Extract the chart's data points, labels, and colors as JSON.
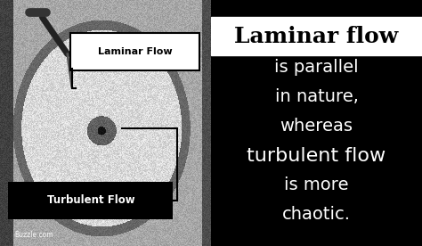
{
  "fig_width": 4.74,
  "fig_height": 2.76,
  "dpi": 100,
  "right_bg_color": "#000000",
  "right_text_color": "#ffffff",
  "title_bg_color": "#ffffff",
  "title_text_color": "#000000",
  "title_text": "Laminar flow",
  "body_lines": [
    "is parallel",
    "in nature,",
    "whereas",
    "turbulent flow",
    "is more",
    "chaotic."
  ],
  "left_label_laminar": "Laminar Flow",
  "left_label_turbulent": "Turbulent Flow",
  "buzzle_text": "Buzzle.com",
  "title_fontsize": 18,
  "body_fontsize": 14,
  "turbulent_fontsize": 16
}
